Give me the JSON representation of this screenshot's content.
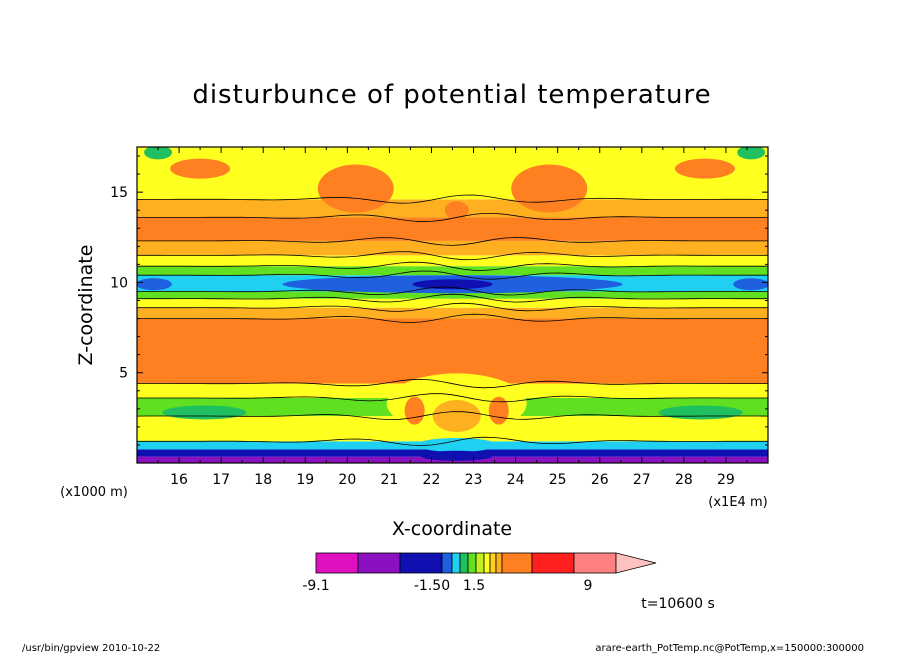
{
  "chart_data": {
    "type": "heatmap",
    "title": "disturbunce of potential temperature",
    "xlabel": "X-coordinate",
    "ylabel": "Z-coordinate",
    "x_unit": "(x1E4 m)",
    "y_unit": "(x1000 m)",
    "x_ticks": [
      "16",
      "17",
      "18",
      "19",
      "20",
      "21",
      "22",
      "23",
      "24",
      "25",
      "26",
      "27",
      "28",
      "29"
    ],
    "y_ticks": [
      "5",
      "10",
      "15"
    ],
    "xlim": [
      15,
      30
    ],
    "ylim": [
      0,
      17.5
    ],
    "colorbar": {
      "labels": [
        "-9.1",
        "-1.50",
        "1.5",
        "9"
      ],
      "colors": [
        "#e010c0",
        "#8a10c0",
        "#1010b0",
        "#1e60e0",
        "#20d0f0",
        "#20c060",
        "#60e020",
        "#c0f020",
        "#ffff20",
        "#ffd020",
        "#ffb020",
        "#ff8020",
        "#ff2020",
        "#ff8080",
        "#ffc0c0"
      ]
    },
    "time_label": "t=10600 s"
  },
  "footer": {
    "left": "/usr/bin/gpview   2010-10-22",
    "right": "arare-earth_PotTemp.nc@PotTemp,x=150000:300000"
  },
  "palette": {
    "magenta": "#e010c0",
    "purple": "#8a10c0",
    "dark_blue": "#1010b0",
    "blue": "#1e60e0",
    "cyan": "#20d0f0",
    "green": "#20c060",
    "light_green": "#60e020",
    "yellow_green": "#c0f020",
    "yellow": "#ffff20",
    "gold": "#ffd020",
    "light_orange": "#ffb020",
    "orange": "#ff8020",
    "red": "#ff2020",
    "salmon": "#ff8080",
    "pink": "#ffc0c0"
  }
}
